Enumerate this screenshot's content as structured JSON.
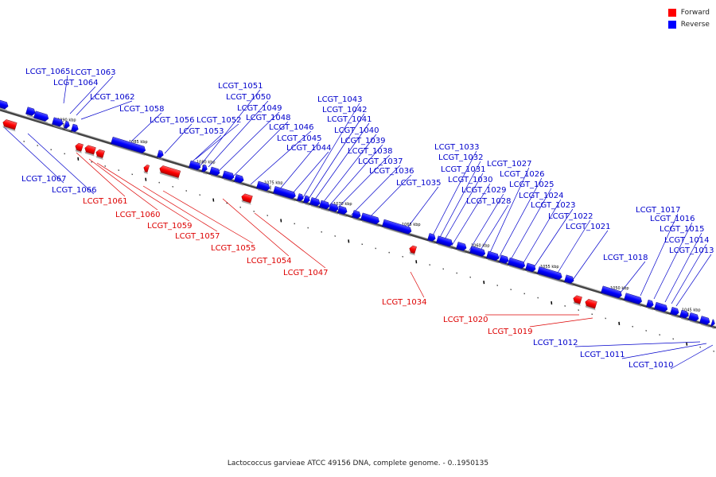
{
  "legend": {
    "items": [
      {
        "label": "Forward",
        "color": "#ff0000"
      },
      {
        "label": "Reverse",
        "color": "#0000ff"
      }
    ]
  },
  "caption": "Lactococcus garvieae ATCC 49156 DNA, complete genome. - 0..1950135",
  "scale_labels": [
    "1090 kbp",
    "1085 kbp",
    "1080 kbp",
    "1075 kbp",
    "1070 kbp",
    "1065 kbp",
    "1060 kbp",
    "1055 kbp",
    "1050 kbp",
    "1045 kbp"
  ],
  "reverse_genes": [
    "LCGT_1065",
    "LCGT_1064",
    "LCGT_1063",
    "LCGT_1062",
    "LCGT_1058",
    "LCGT_1056",
    "LCGT_1051",
    "LCGT_1050",
    "LCGT_1049",
    "LCGT_1048",
    "LCGT_1052",
    "LCGT_1053",
    "LCGT_1046",
    "LCGT_1045",
    "LCGT_1044",
    "LCGT_1043",
    "LCGT_1042",
    "LCGT_1041",
    "LCGT_1040",
    "LCGT_1039",
    "LCGT_1038",
    "LCGT_1037",
    "LCGT_1036",
    "LCGT_1035",
    "LCGT_1033",
    "LCGT_1032",
    "LCGT_1031",
    "LCGT_1030",
    "LCGT_1029",
    "LCGT_1028",
    "LCGT_1027",
    "LCGT_1026",
    "LCGT_1025",
    "LCGT_1024",
    "LCGT_1023",
    "LCGT_1022",
    "LCGT_1021",
    "LCGT_1018",
    "LCGT_1017",
    "LCGT_1016",
    "LCGT_1015",
    "LCGT_1014",
    "LCGT_1013",
    "LCGT_1067",
    "LCGT_1066",
    "LCGT_1012",
    "LCGT_1011",
    "LCGT_1010"
  ],
  "forward_genes": [
    "LCGT_1061",
    "LCGT_1060",
    "LCGT_1059",
    "LCGT_1057",
    "LCGT_1055",
    "LCGT_1054",
    "LCGT_1047",
    "LCGT_1034",
    "LCGT_1020",
    "LCGT_1019"
  ]
}
